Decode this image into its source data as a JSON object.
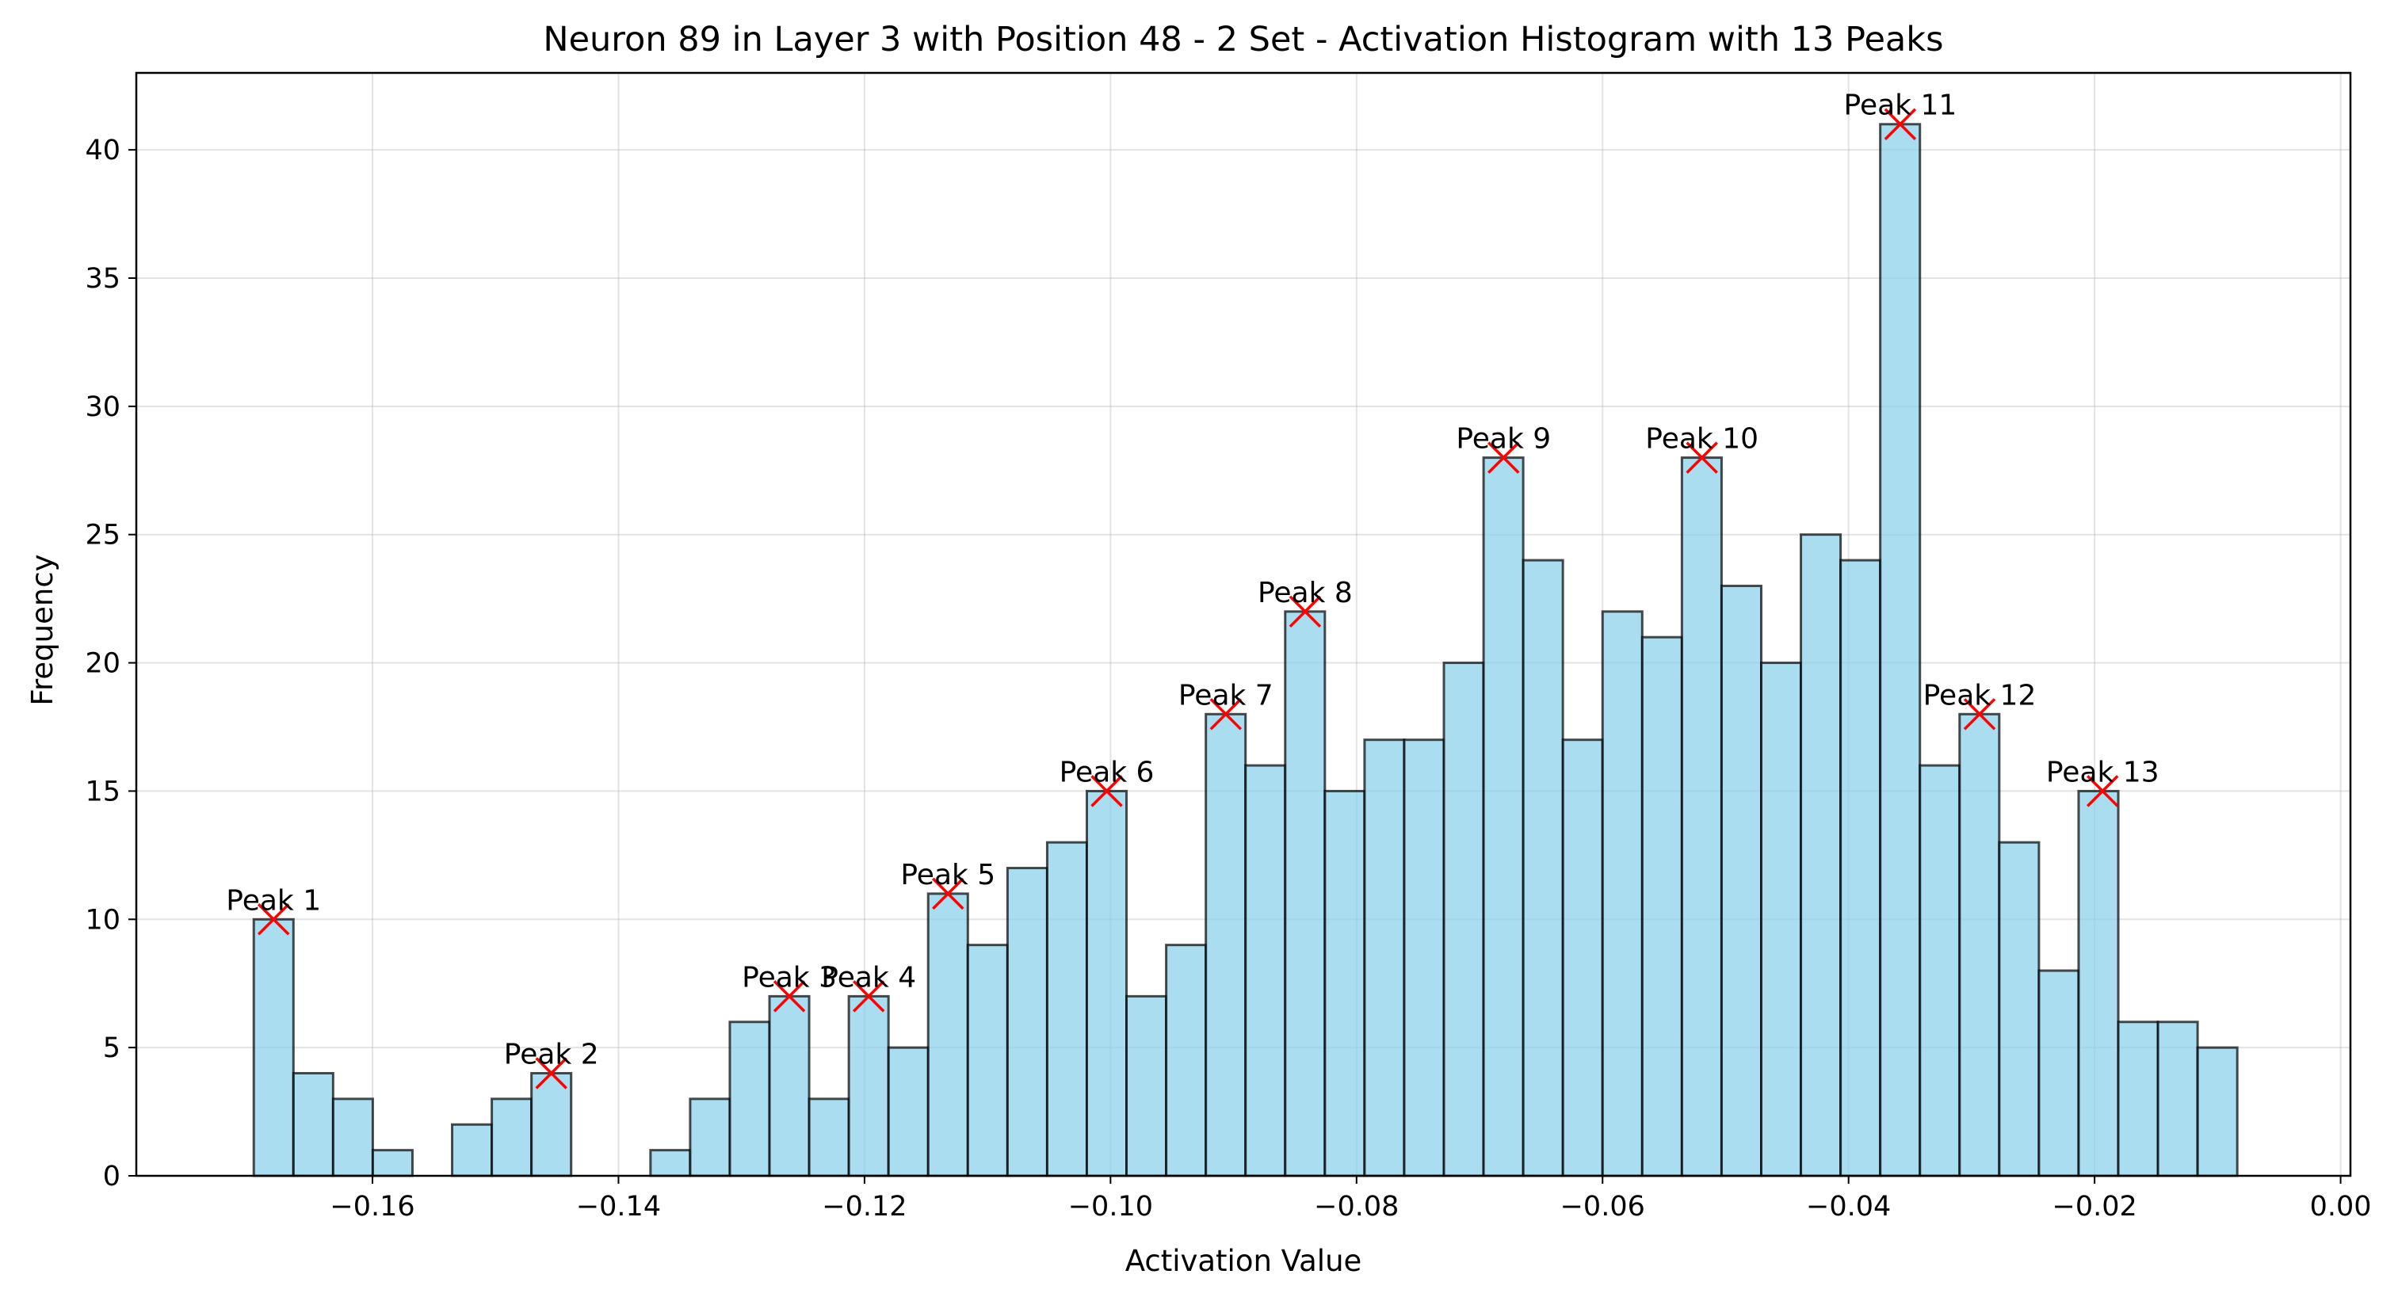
{
  "chart_data": {
    "type": "bar",
    "title": "Neuron 89 in Layer 3 with Position 48 - 2 Set - Activation Histogram with 13 Peaks",
    "xlabel": "Activation Value",
    "ylabel": "Frequency",
    "xlim": [
      -0.1792,
      0.0008
    ],
    "ylim": [
      0,
      43
    ],
    "x_ticks": [
      -0.16,
      -0.14,
      -0.12,
      -0.1,
      -0.08,
      -0.06,
      -0.04,
      -0.02,
      0.0
    ],
    "x_tick_labels": [
      "−0.16",
      "−0.14",
      "−0.12",
      "−0.10",
      "−0.08",
      "−0.06",
      "−0.04",
      "−0.02",
      "0.00"
    ],
    "y_ticks": [
      0,
      5,
      10,
      15,
      20,
      25,
      30,
      35,
      40
    ],
    "y_tick_labels": [
      "0",
      "5",
      "10",
      "15",
      "20",
      "25",
      "30",
      "35",
      "40"
    ],
    "grid": true,
    "bar_color": "#87CEEB",
    "edge_color": "#000000",
    "marker_color": "#FF0000",
    "bins": {
      "start": -0.16965,
      "width": 0.003225,
      "counts": [
        10,
        4,
        3,
        1,
        0,
        2,
        3,
        4,
        0,
        0,
        1,
        3,
        6,
        7,
        3,
        7,
        5,
        11,
        9,
        12,
        13,
        15,
        7,
        9,
        18,
        16,
        22,
        15,
        17,
        17,
        20,
        28,
        24,
        17,
        22,
        21,
        28,
        23,
        20,
        25,
        24,
        41,
        16,
        18,
        13,
        8,
        15,
        6,
        6,
        5
      ]
    },
    "peaks": [
      {
        "label": "Peak 1",
        "x": -0.16804,
        "y": 10
      },
      {
        "label": "Peak 2",
        "x": -0.14546,
        "y": 4
      },
      {
        "label": "Peak 3",
        "x": -0.12611,
        "y": 7
      },
      {
        "label": "Peak 4",
        "x": -0.11966,
        "y": 7
      },
      {
        "label": "Peak 5",
        "x": -0.11321,
        "y": 11
      },
      {
        "label": "Peak 6",
        "x": -0.10031,
        "y": 15
      },
      {
        "label": "Peak 7",
        "x": -0.09063,
        "y": 18
      },
      {
        "label": "Peak 8",
        "x": -0.08418,
        "y": 22
      },
      {
        "label": "Peak 9",
        "x": -0.06805,
        "y": 28
      },
      {
        "label": "Peak 10",
        "x": -0.05192,
        "y": 28
      },
      {
        "label": "Peak 11",
        "x": -0.0358,
        "y": 41
      },
      {
        "label": "Peak 12",
        "x": -0.02935,
        "y": 18
      },
      {
        "label": "Peak 13",
        "x": -0.01935,
        "y": 15
      }
    ]
  }
}
